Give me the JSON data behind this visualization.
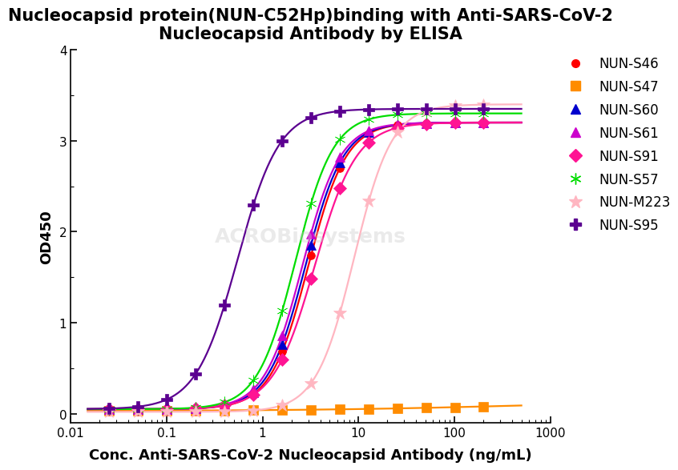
{
  "title": "Nucleocapsid protein(NUN-C52Hp)binding with Anti-SARS-CoV-2\nNucleocapsid Antibody by ELISA",
  "xlabel": "Conc. Anti-SARS-CoV-2 Nucleocapsid Antibody (ng/mL)",
  "ylabel": "OD450",
  "xmin": 0.02,
  "xmax": 300,
  "ymin": -0.1,
  "ymax": 4.0,
  "series": [
    {
      "name": "NUN-S46",
      "color": "#FF0000",
      "marker": "o",
      "ec50": 3.0,
      "bottom": 0.05,
      "top": 3.2,
      "hill": 2.2
    },
    {
      "name": "NUN-S47",
      "color": "#FF8C00",
      "marker": "s",
      "ec50": 500,
      "bottom": 0.03,
      "top": 0.15,
      "hill": 0.4
    },
    {
      "name": "NUN-S60",
      "color": "#0000CD",
      "marker": "^",
      "ec50": 2.8,
      "bottom": 0.05,
      "top": 3.2,
      "hill": 2.2
    },
    {
      "name": "NUN-S61",
      "color": "#CC00CC",
      "marker": "^",
      "ec50": 2.6,
      "bottom": 0.05,
      "top": 3.2,
      "hill": 2.2
    },
    {
      "name": "NUN-S91",
      "color": "#FF1493",
      "marker": "D",
      "ec50": 3.5,
      "bottom": 0.05,
      "top": 3.2,
      "hill": 2.0
    },
    {
      "name": "NUN-S57",
      "color": "#00DD00",
      "marker": "o",
      "ec50": 2.2,
      "bottom": 0.05,
      "top": 3.3,
      "hill": 2.2
    },
    {
      "name": "NUN-M223",
      "color": "#FFB6C1",
      "marker": "*",
      "ec50": 9.0,
      "bottom": 0.02,
      "top": 3.4,
      "hill": 2.2
    },
    {
      "name": "NUN-S95",
      "color": "#5B0090",
      "marker": "P",
      "ec50": 0.55,
      "bottom": 0.05,
      "top": 3.35,
      "hill": 2.0
    }
  ],
  "x_points": [
    0.025,
    0.05,
    0.1,
    0.2,
    0.4,
    0.8,
    1.6,
    3.2,
    6.4,
    12.8,
    25.6,
    51.2,
    102.4,
    200.0
  ],
  "background_color": "#FFFFFF",
  "title_fontsize": 15,
  "label_fontsize": 13,
  "legend_fontsize": 12
}
